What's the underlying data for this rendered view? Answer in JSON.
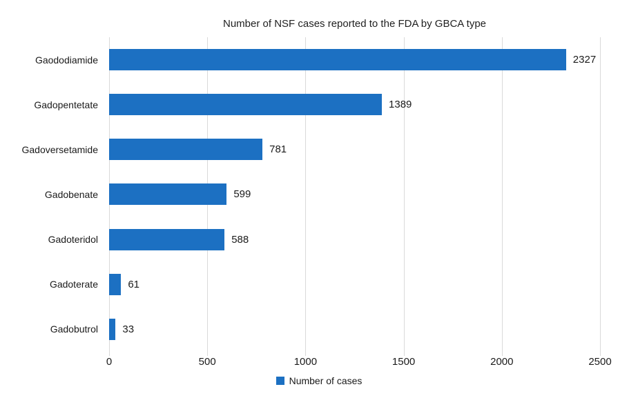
{
  "title": "Number of NSF cases reported to the FDA by GBCA type",
  "legend": {
    "label": "Number of cases"
  },
  "colors": {
    "bar": "#1c70c2",
    "gridline": "#d9d9d9",
    "text": "#1a1a1a"
  },
  "chart_data": {
    "type": "bar",
    "orientation": "horizontal",
    "title": "Number of NSF cases reported to the FDA by GBCA type",
    "categories": [
      "Gaododiamide",
      "Gadopentetate",
      "Gadoversetamide",
      "Gadobenate",
      "Gadoteridol",
      "Gadoterate",
      "Gadobutrol"
    ],
    "values": [
      2327,
      1389,
      781,
      599,
      588,
      61,
      33
    ],
    "xlabel": "",
    "ylabel": "",
    "xlim": [
      0,
      2500
    ],
    "x_ticks": [
      0,
      500,
      1000,
      1500,
      2000,
      2500
    ],
    "grid": "vertical",
    "legend_entries": [
      "Number of cases"
    ],
    "legend_position": "bottom",
    "value_labels": true
  }
}
